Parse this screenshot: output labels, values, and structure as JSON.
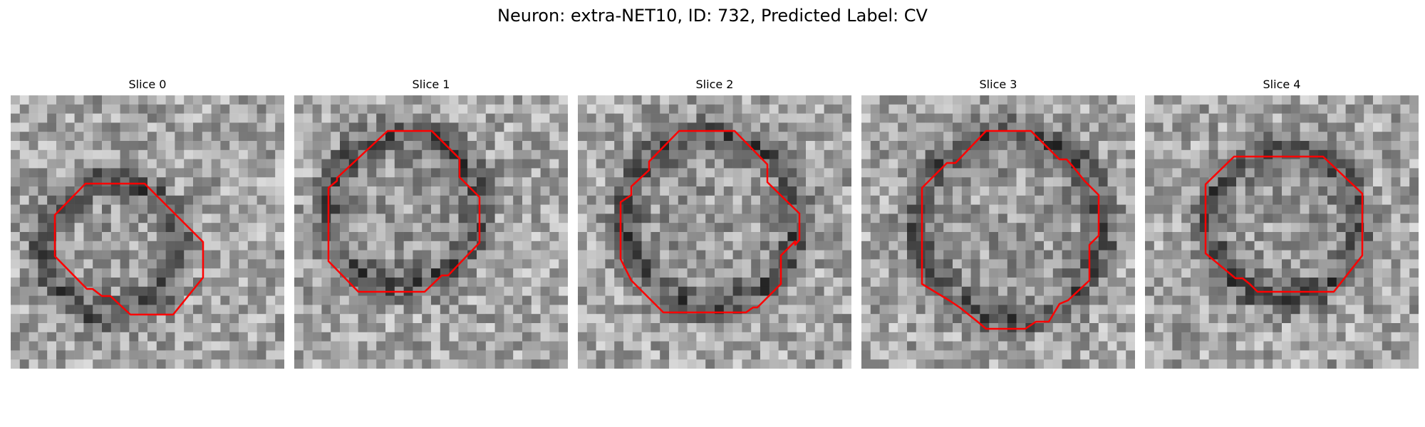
{
  "figure": {
    "title": "Neuron: extra-NET10, ID: 732, Predicted Label: CV"
  },
  "panels": [
    {
      "title": "Slice 0",
      "image_icon": "grayscale-microscopy-patch",
      "overlay_icon": "red-contour-outline"
    },
    {
      "title": "Slice 1",
      "image_icon": "grayscale-microscopy-patch",
      "overlay_icon": "red-contour-outline"
    },
    {
      "title": "Slice 2",
      "image_icon": "grayscale-microscopy-patch",
      "overlay_icon": "red-contour-outline"
    },
    {
      "title": "Slice 3",
      "image_icon": "grayscale-microscopy-patch",
      "overlay_icon": "red-contour-outline"
    },
    {
      "title": "Slice 4",
      "image_icon": "grayscale-microscopy-patch",
      "overlay_icon": "red-contour-outline"
    }
  ],
  "colors": {
    "contour": "#ff0000",
    "background": "#ffffff"
  }
}
